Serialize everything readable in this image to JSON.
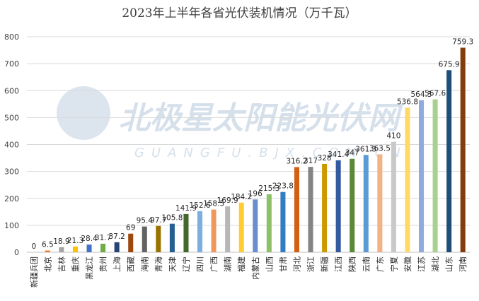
{
  "chart_data": {
    "type": "bar",
    "title": "2023年上半年各省光伏装机情况（万千瓦）",
    "xlabel": "",
    "ylabel": "",
    "ylim": [
      0,
      800
    ],
    "yticks": [
      0,
      100,
      200,
      300,
      400,
      500,
      600,
      700,
      800
    ],
    "grid": true,
    "legend": "none",
    "categories": [
      "新疆兵团",
      "北京",
      "吉林",
      "重庆",
      "黑龙江",
      "贵州",
      "上海",
      "西藏",
      "海南",
      "青海",
      "天津",
      "辽宁",
      "四川",
      "广西",
      "湖南",
      "福建",
      "内蒙古",
      "山西",
      "甘肃",
      "河北",
      "浙江",
      "新疆",
      "江西",
      "陕西",
      "云南",
      "广东",
      "宁夏",
      "安徽",
      "江苏",
      "湖北",
      "山东",
      "河南"
    ],
    "values": [
      0,
      6.5,
      18.9,
      21.3,
      28.4,
      31.7,
      37.2,
      69,
      95.4,
      97.7,
      105.8,
      141.9,
      152.6,
      158.5,
      169.9,
      184.2,
      196,
      215.3,
      223.8,
      316.2,
      317,
      328,
      341.4,
      347,
      361.3,
      363.5,
      410,
      536.8,
      564.3,
      567.6,
      675.9,
      759.3
    ],
    "value_labels": [
      "0",
      "6.5",
      "18.9",
      "21.3",
      "28.4",
      "31.7",
      "37.2",
      "69",
      "95.4",
      "97.7",
      "105.8",
      "141.9",
      "152.6",
      "158.5",
      "169.9",
      "184.2",
      "196",
      "215.3",
      "223.8",
      "316.2",
      "317",
      "328",
      "341.4",
      "347",
      "361.3",
      "363.5",
      "410",
      "536.8",
      "564.3",
      "567.6",
      "675.9",
      "759.3"
    ],
    "colors": [
      "#ed7d31",
      "#ed7d31",
      "#a5a5a5",
      "#ffc000",
      "#4472c4",
      "#70ad47",
      "#264478",
      "#9e480e",
      "#636363",
      "#997300",
      "#255e91",
      "#43682b",
      "#7cafdd",
      "#f1975a",
      "#b7b7b7",
      "#ffcd33",
      "#698ed0",
      "#8cc168",
      "#327dc2",
      "#d26012",
      "#848484",
      "#cc9a00",
      "#335aa1",
      "#5a8a39",
      "#5b9bd5",
      "#f4b183",
      "#c9c9c9",
      "#ffd966",
      "#8faadc",
      "#a9d18e",
      "#1f4e79",
      "#843c0c"
    ]
  },
  "watermark": {
    "text": "北极星太阳能光伏网",
    "subtext": "GUANGFU.BJX.COM.CN"
  }
}
